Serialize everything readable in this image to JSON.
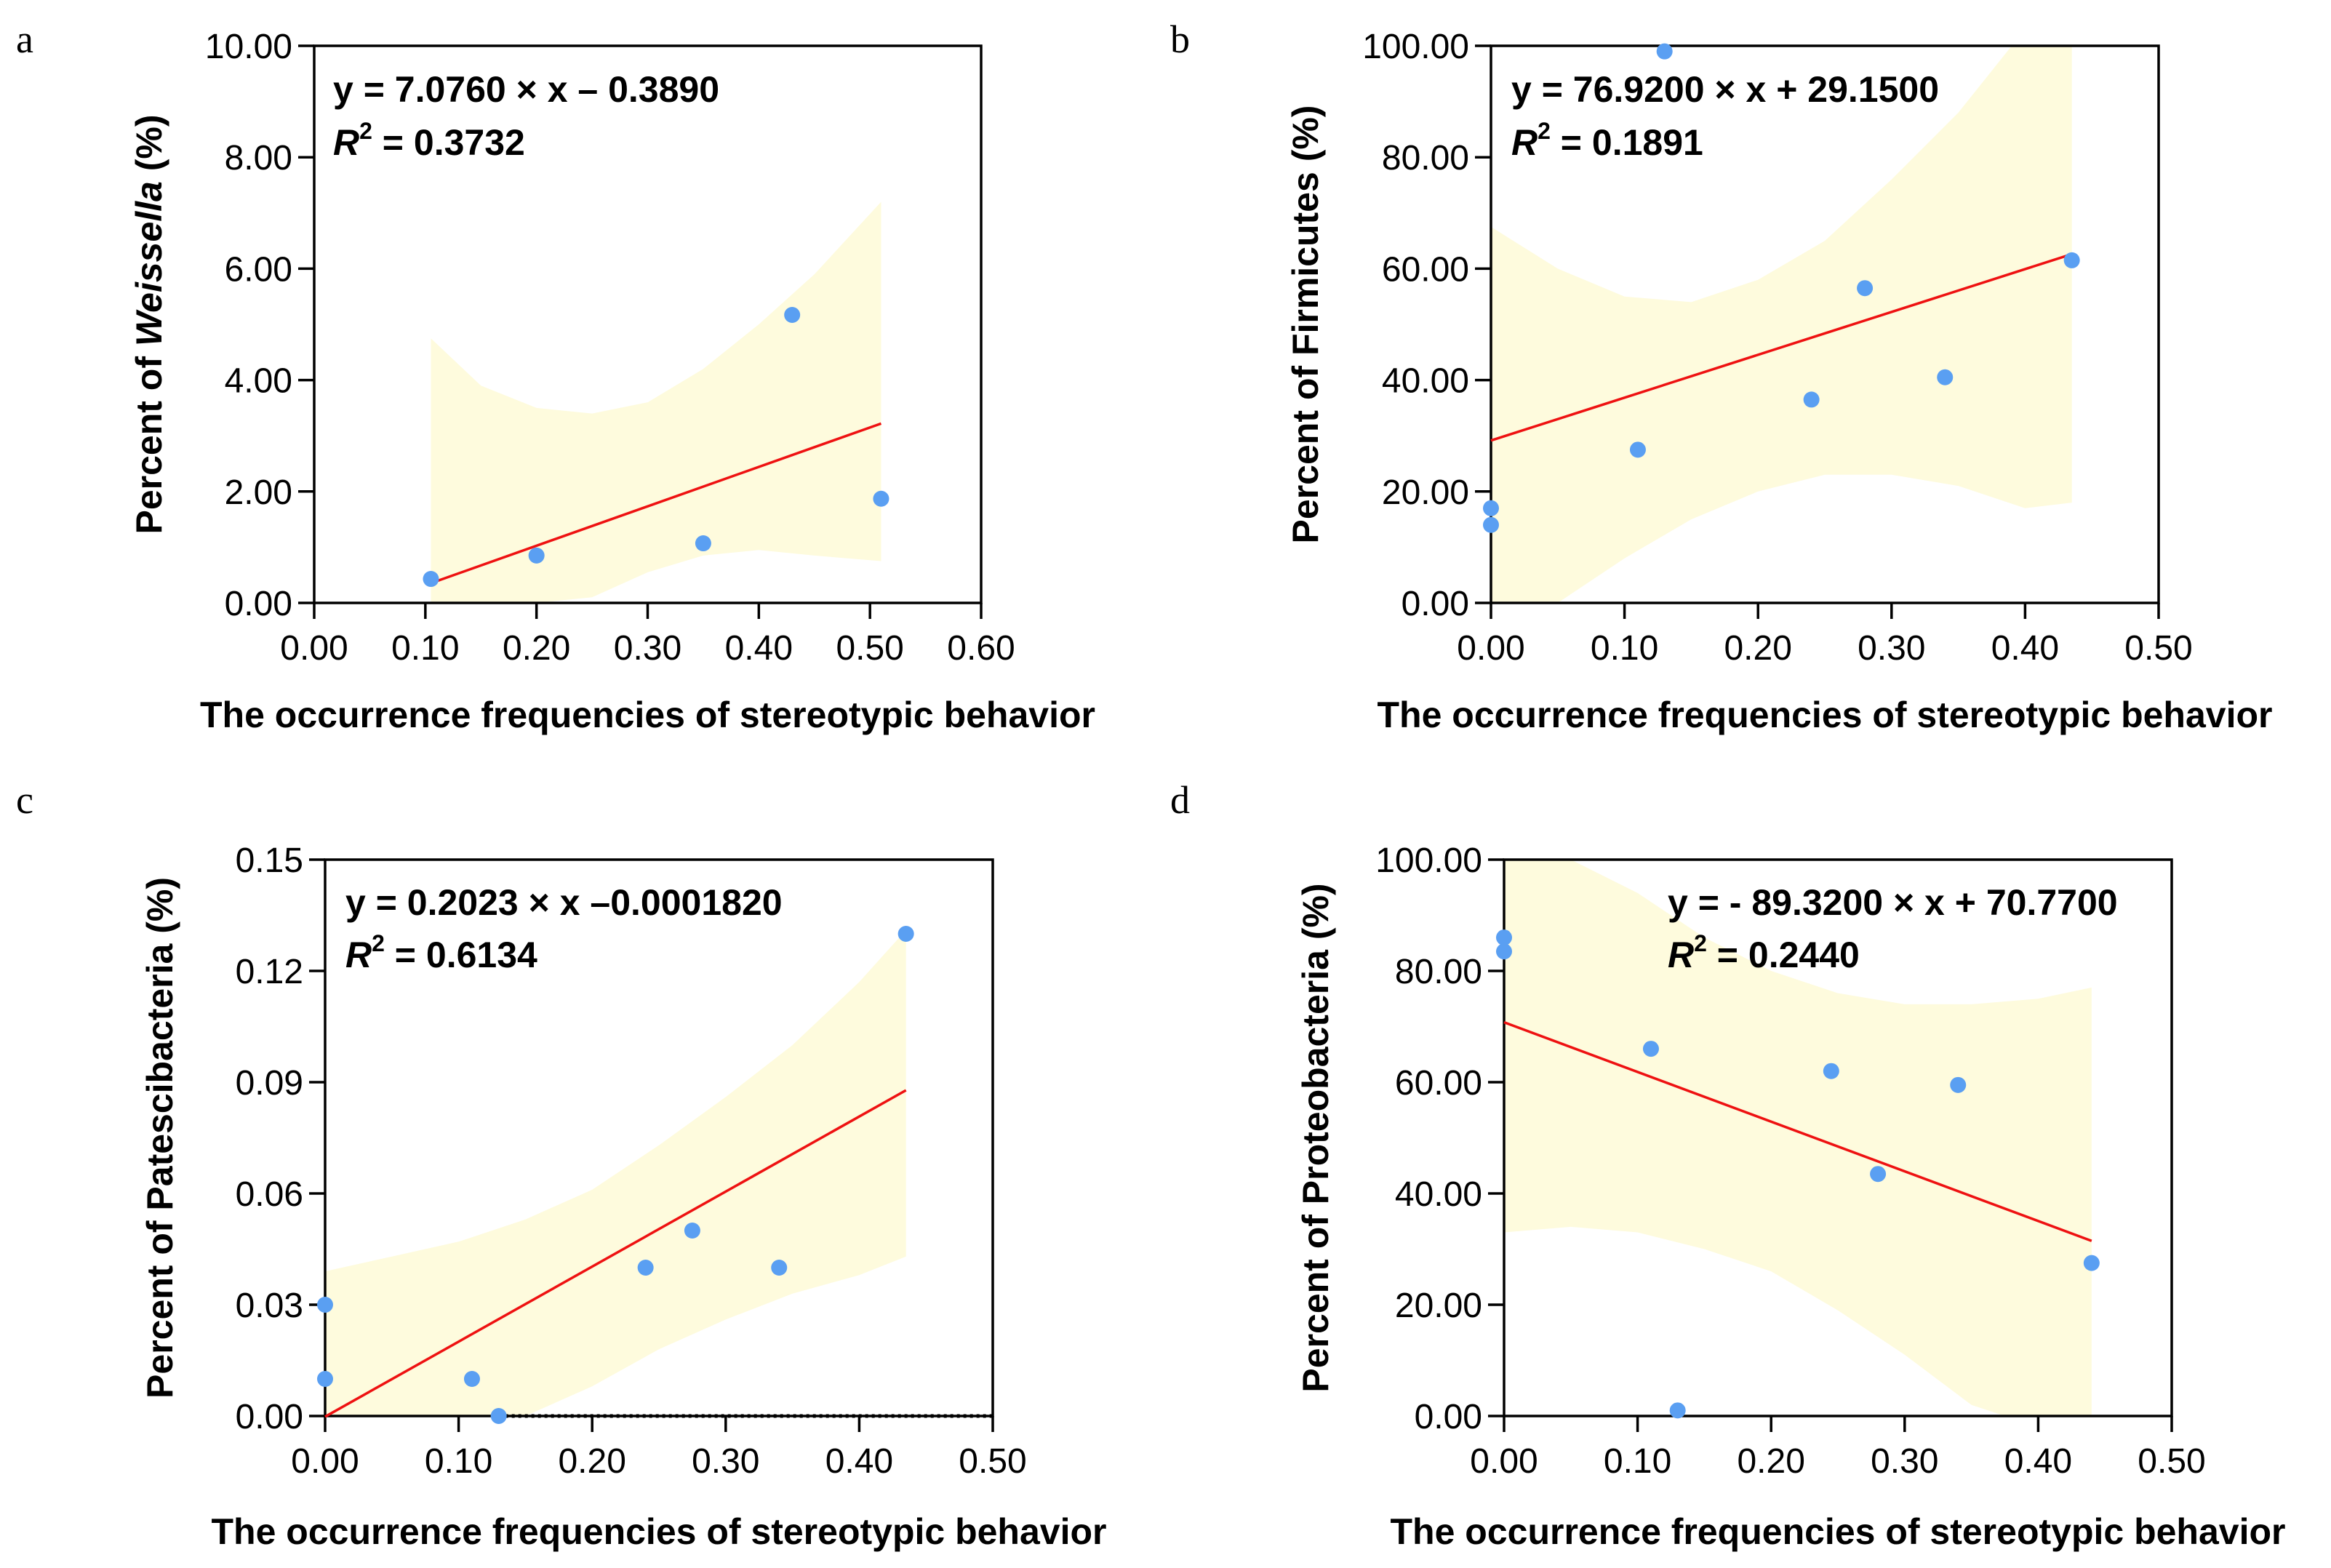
{
  "chart_data": [
    {
      "type": "scatter",
      "panel": "a",
      "xlabel": "The occurrence frequencies of stereotypic behavior",
      "ylabel": "Percent of Weissella (%)",
      "ylabel_parts": [
        "Percent of ",
        "Weissella",
        " (%)"
      ],
      "xlim": [
        0,
        0.6
      ],
      "ylim": [
        0,
        10
      ],
      "xticks": [
        "0.00",
        "0.10",
        "0.20",
        "0.30",
        "0.40",
        "0.50",
        "0.60"
      ],
      "yticks": [
        "0.00",
        "2.00",
        "4.00",
        "6.00",
        "8.00",
        "10.00"
      ],
      "equation": "y = 7.0760 × x – 0.3890",
      "r2_label": "R",
      "r2_value": " = 0.3732",
      "fit": {
        "slope": 7.076,
        "intercept": -0.389,
        "x_range": [
          0.105,
          0.51
        ]
      },
      "band_upper": [
        [
          0.105,
          4.75
        ],
        [
          0.15,
          3.9
        ],
        [
          0.2,
          3.5
        ],
        [
          0.25,
          3.4
        ],
        [
          0.3,
          3.6
        ],
        [
          0.35,
          4.2
        ],
        [
          0.4,
          5.0
        ],
        [
          0.45,
          5.9
        ],
        [
          0.51,
          7.2
        ]
      ],
      "band_lower": [
        [
          0.105,
          0.0
        ],
        [
          0.2,
          0.0
        ],
        [
          0.25,
          0.1
        ],
        [
          0.3,
          0.55
        ],
        [
          0.35,
          0.85
        ],
        [
          0.4,
          0.95
        ],
        [
          0.45,
          0.85
        ],
        [
          0.51,
          0.75
        ]
      ],
      "points": [
        [
          0.105,
          0.43
        ],
        [
          0.2,
          0.85
        ],
        [
          0.35,
          1.07
        ],
        [
          0.43,
          5.17
        ],
        [
          0.51,
          1.87
        ]
      ]
    },
    {
      "type": "scatter",
      "panel": "b",
      "xlabel": "The occurrence frequencies of stereotypic behavior",
      "ylabel": "Percent of Firmicutes (%)",
      "ylabel_parts": [
        "Percent of Firmicutes (%)"
      ],
      "xlim": [
        0,
        0.5
      ],
      "ylim": [
        0,
        100
      ],
      "xticks": [
        "0.00",
        "0.10",
        "0.20",
        "0.30",
        "0.40",
        "0.50"
      ],
      "yticks": [
        "0.00",
        "20.00",
        "40.00",
        "60.00",
        "80.00",
        "100.00"
      ],
      "equation": "y = 76.9200 × x + 29.1500",
      "r2_label": "R",
      "r2_value": " = 0.1891",
      "fit": {
        "slope": 76.92,
        "intercept": 29.15,
        "x_range": [
          0,
          0.435
        ]
      },
      "band_upper": [
        [
          0,
          67.5
        ],
        [
          0.05,
          60
        ],
        [
          0.1,
          55
        ],
        [
          0.15,
          54
        ],
        [
          0.2,
          58
        ],
        [
          0.25,
          65
        ],
        [
          0.3,
          76
        ],
        [
          0.35,
          88
        ],
        [
          0.39,
          100
        ],
        [
          0.435,
          100
        ]
      ],
      "band_lower": [
        [
          0,
          0
        ],
        [
          0.04,
          0
        ],
        [
          0.05,
          0
        ],
        [
          0.1,
          8
        ],
        [
          0.15,
          15
        ],
        [
          0.2,
          20
        ],
        [
          0.25,
          23
        ],
        [
          0.3,
          23
        ],
        [
          0.35,
          21
        ],
        [
          0.4,
          17
        ],
        [
          0.435,
          18
        ]
      ],
      "points": [
        [
          0,
          17
        ],
        [
          0,
          14
        ],
        [
          0.11,
          27.5
        ],
        [
          0.13,
          99
        ],
        [
          0.24,
          36.5
        ],
        [
          0.28,
          56.5
        ],
        [
          0.34,
          40.5
        ],
        [
          0.435,
          61.5
        ]
      ]
    },
    {
      "type": "scatter",
      "panel": "c",
      "xlabel": "The occurrence frequencies of stereotypic behavior",
      "ylabel": "Percent of Patescibacteria (%)",
      "ylabel_parts": [
        "Percent of Patescibacteria (%)"
      ],
      "xlim": [
        0,
        0.5
      ],
      "ylim": [
        0,
        0.15
      ],
      "xticks": [
        "0.00",
        "0.10",
        "0.20",
        "0.30",
        "0.40",
        "0.50"
      ],
      "yticks": [
        "0.00",
        "0.03",
        "0.06",
        "0.09",
        "0.12",
        "0.15"
      ],
      "equation": "y = 0.2023 × x –0.0001820",
      "r2_label": "R",
      "r2_value": " = 0.6134",
      "fit": {
        "slope": 0.2023,
        "intercept": -0.000182,
        "x_range": [
          0,
          0.435
        ]
      },
      "band_upper": [
        [
          0,
          0.039
        ],
        [
          0.05,
          0.043
        ],
        [
          0.1,
          0.047
        ],
        [
          0.15,
          0.053
        ],
        [
          0.2,
          0.061
        ],
        [
          0.25,
          0.073
        ],
        [
          0.3,
          0.086
        ],
        [
          0.35,
          0.1
        ],
        [
          0.4,
          0.117
        ],
        [
          0.435,
          0.131
        ]
      ],
      "band_lower": [
        [
          0,
          0
        ],
        [
          0.15,
          0
        ],
        [
          0.2,
          0.008
        ],
        [
          0.25,
          0.018
        ],
        [
          0.3,
          0.026
        ],
        [
          0.35,
          0.033
        ],
        [
          0.4,
          0.038
        ],
        [
          0.435,
          0.043
        ]
      ],
      "points": [
        [
          0,
          0.03
        ],
        [
          0,
          0.01
        ],
        [
          0.11,
          0.01
        ],
        [
          0.13,
          0
        ],
        [
          0.24,
          0.04
        ],
        [
          0.275,
          0.05
        ],
        [
          0.34,
          0.04
        ],
        [
          0.435,
          0.13
        ]
      ]
    },
    {
      "type": "scatter",
      "panel": "d",
      "xlabel": "The occurrence frequencies of stereotypic behavior",
      "ylabel": "Percent of Proteobacteria (%)",
      "ylabel_parts": [
        "Percent of Proteobacteria (%)"
      ],
      "xlim": [
        0,
        0.5
      ],
      "ylim": [
        0,
        100
      ],
      "xticks": [
        "0.00",
        "0.10",
        "0.20",
        "0.30",
        "0.40",
        "0.50"
      ],
      "yticks": [
        "0.00",
        "20.00",
        "40.00",
        "60.00",
        "80.00",
        "100.00"
      ],
      "equation": "y = - 89.3200 × x + 70.7700",
      "r2_label": "R",
      "r2_value": " = 0.2440",
      "fit": {
        "slope": -89.32,
        "intercept": 70.77,
        "x_range": [
          0,
          0.44
        ]
      },
      "band_upper": [
        [
          0,
          100
        ],
        [
          0.05,
          100
        ],
        [
          0.1,
          94
        ],
        [
          0.15,
          86
        ],
        [
          0.2,
          80
        ],
        [
          0.25,
          76
        ],
        [
          0.3,
          74
        ],
        [
          0.35,
          74
        ],
        [
          0.4,
          75
        ],
        [
          0.44,
          77
        ]
      ],
      "band_lower": [
        [
          0,
          33
        ],
        [
          0.05,
          34
        ],
        [
          0.1,
          33
        ],
        [
          0.15,
          30
        ],
        [
          0.2,
          26
        ],
        [
          0.25,
          19
        ],
        [
          0.3,
          11
        ],
        [
          0.35,
          2
        ],
        [
          0.375,
          0
        ],
        [
          0.44,
          0
        ]
      ],
      "points": [
        [
          0,
          86
        ],
        [
          0,
          83.5
        ],
        [
          0.11,
          66
        ],
        [
          0.13,
          1
        ],
        [
          0.245,
          62
        ],
        [
          0.28,
          43.5
        ],
        [
          0.34,
          59.5
        ],
        [
          0.44,
          27.5
        ]
      ]
    }
  ]
}
